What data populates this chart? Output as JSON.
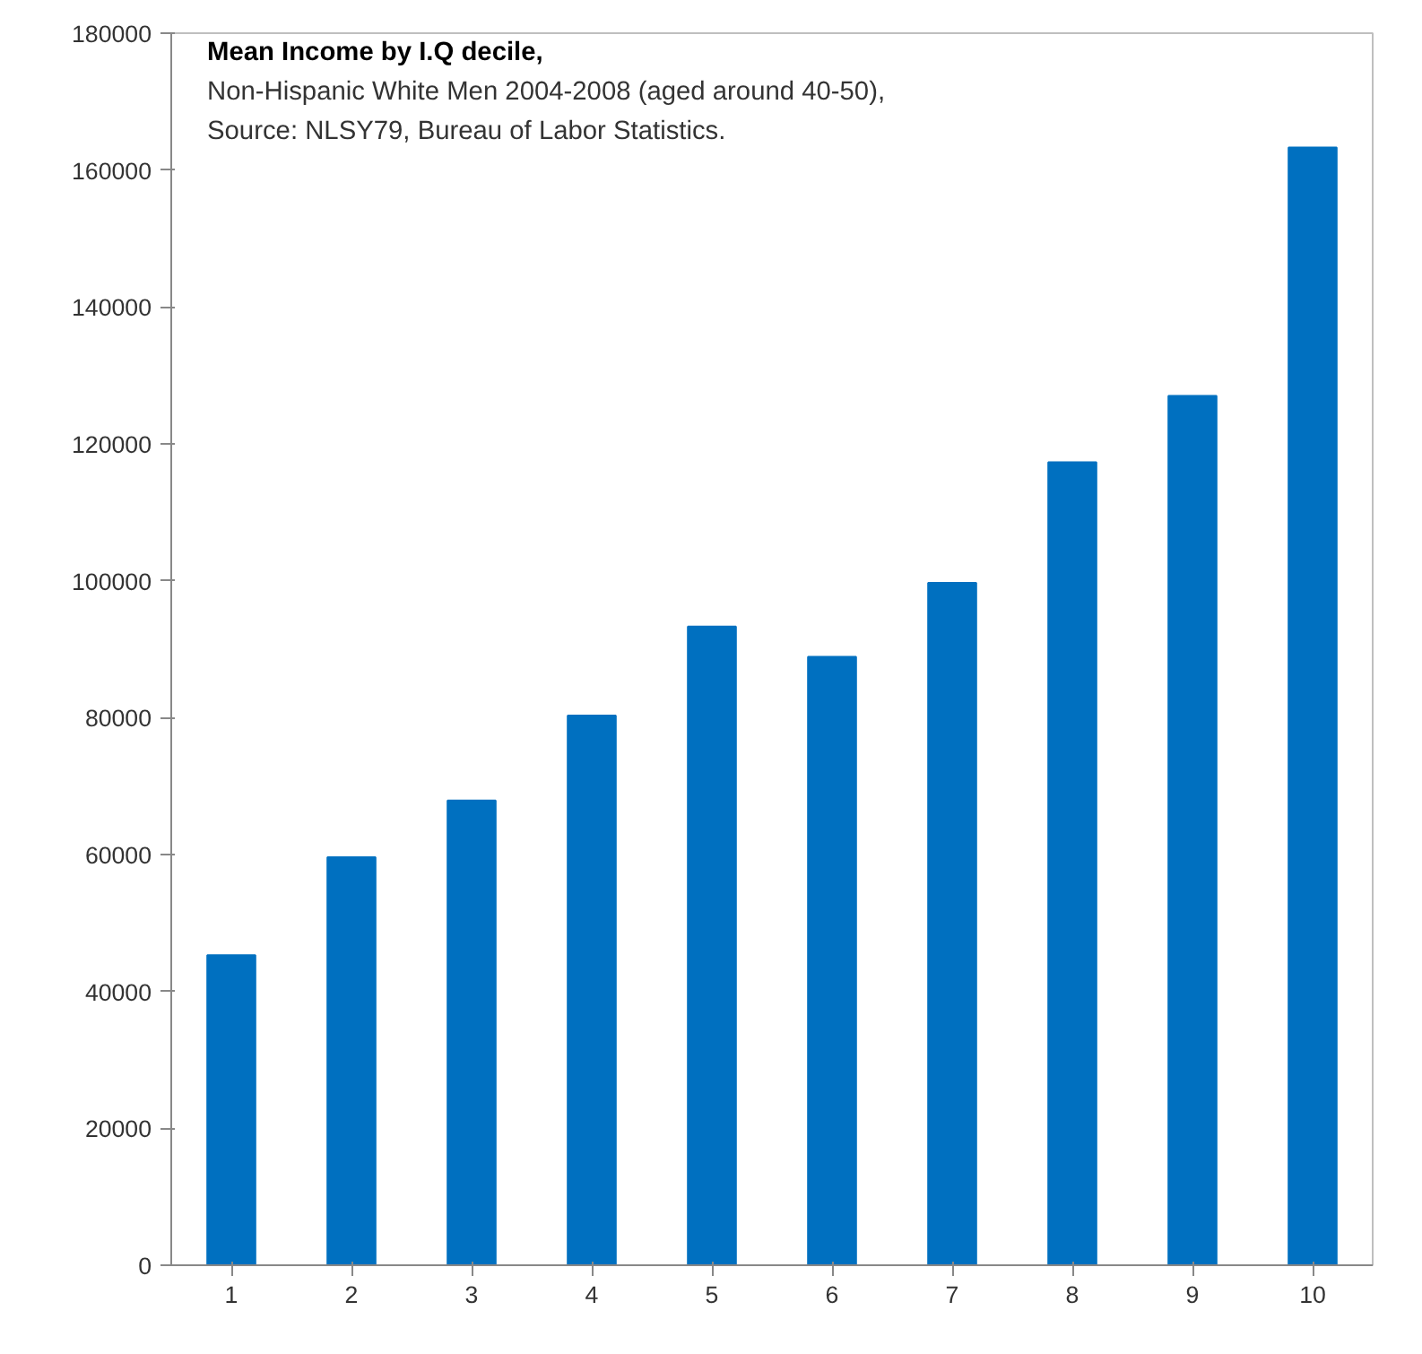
{
  "chart_data": {
    "type": "bar",
    "title": "Mean Income by I.Q decile,",
    "subtitle": "Non-Hispanic White Men 2004-2008 (aged around 40-50),",
    "annotations": [
      "Source: NLSY79, Bureau of Labor Statistics."
    ],
    "categories": [
      "1",
      "2",
      "3",
      "4",
      "5",
      "6",
      "7",
      "8",
      "9",
      "10"
    ],
    "values": [
      45300,
      59600,
      67900,
      80300,
      93300,
      88900,
      99700,
      117300,
      127000,
      163300
    ],
    "color": "#0070c0",
    "ylim": [
      0,
      180000
    ],
    "yticks": [
      0,
      20000,
      40000,
      60000,
      80000,
      100000,
      120000,
      140000,
      160000,
      180000
    ],
    "grid": false
  }
}
